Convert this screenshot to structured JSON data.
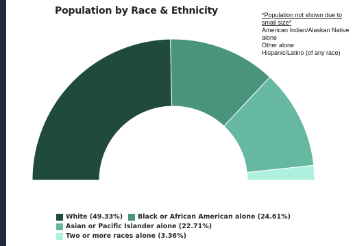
{
  "chart_data": {
    "type": "pie",
    "variant": "half-donut",
    "title": "Population by Race & Ethnicity",
    "slices": [
      {
        "label": "White (49.33%)",
        "value": 49.33,
        "color": "#1f4a3c"
      },
      {
        "label": "Black or African American alone (24.61%)",
        "value": 24.61,
        "color": "#4a937c"
      },
      {
        "label": "Asian or Pacific Islander alone (22.71%)",
        "value": 22.71,
        "color": "#66b8a0"
      },
      {
        "label": "Two or more races alone (3.36%)",
        "value": 3.36,
        "color": "#adf0de"
      }
    ],
    "legend_placement": "bottom",
    "note": {
      "heading": "*Population not shown due to small size*",
      "items": [
        "American Indian/Alaskan Native alone",
        "Other alone",
        "Hispanic/Latino (of any race)"
      ]
    }
  }
}
